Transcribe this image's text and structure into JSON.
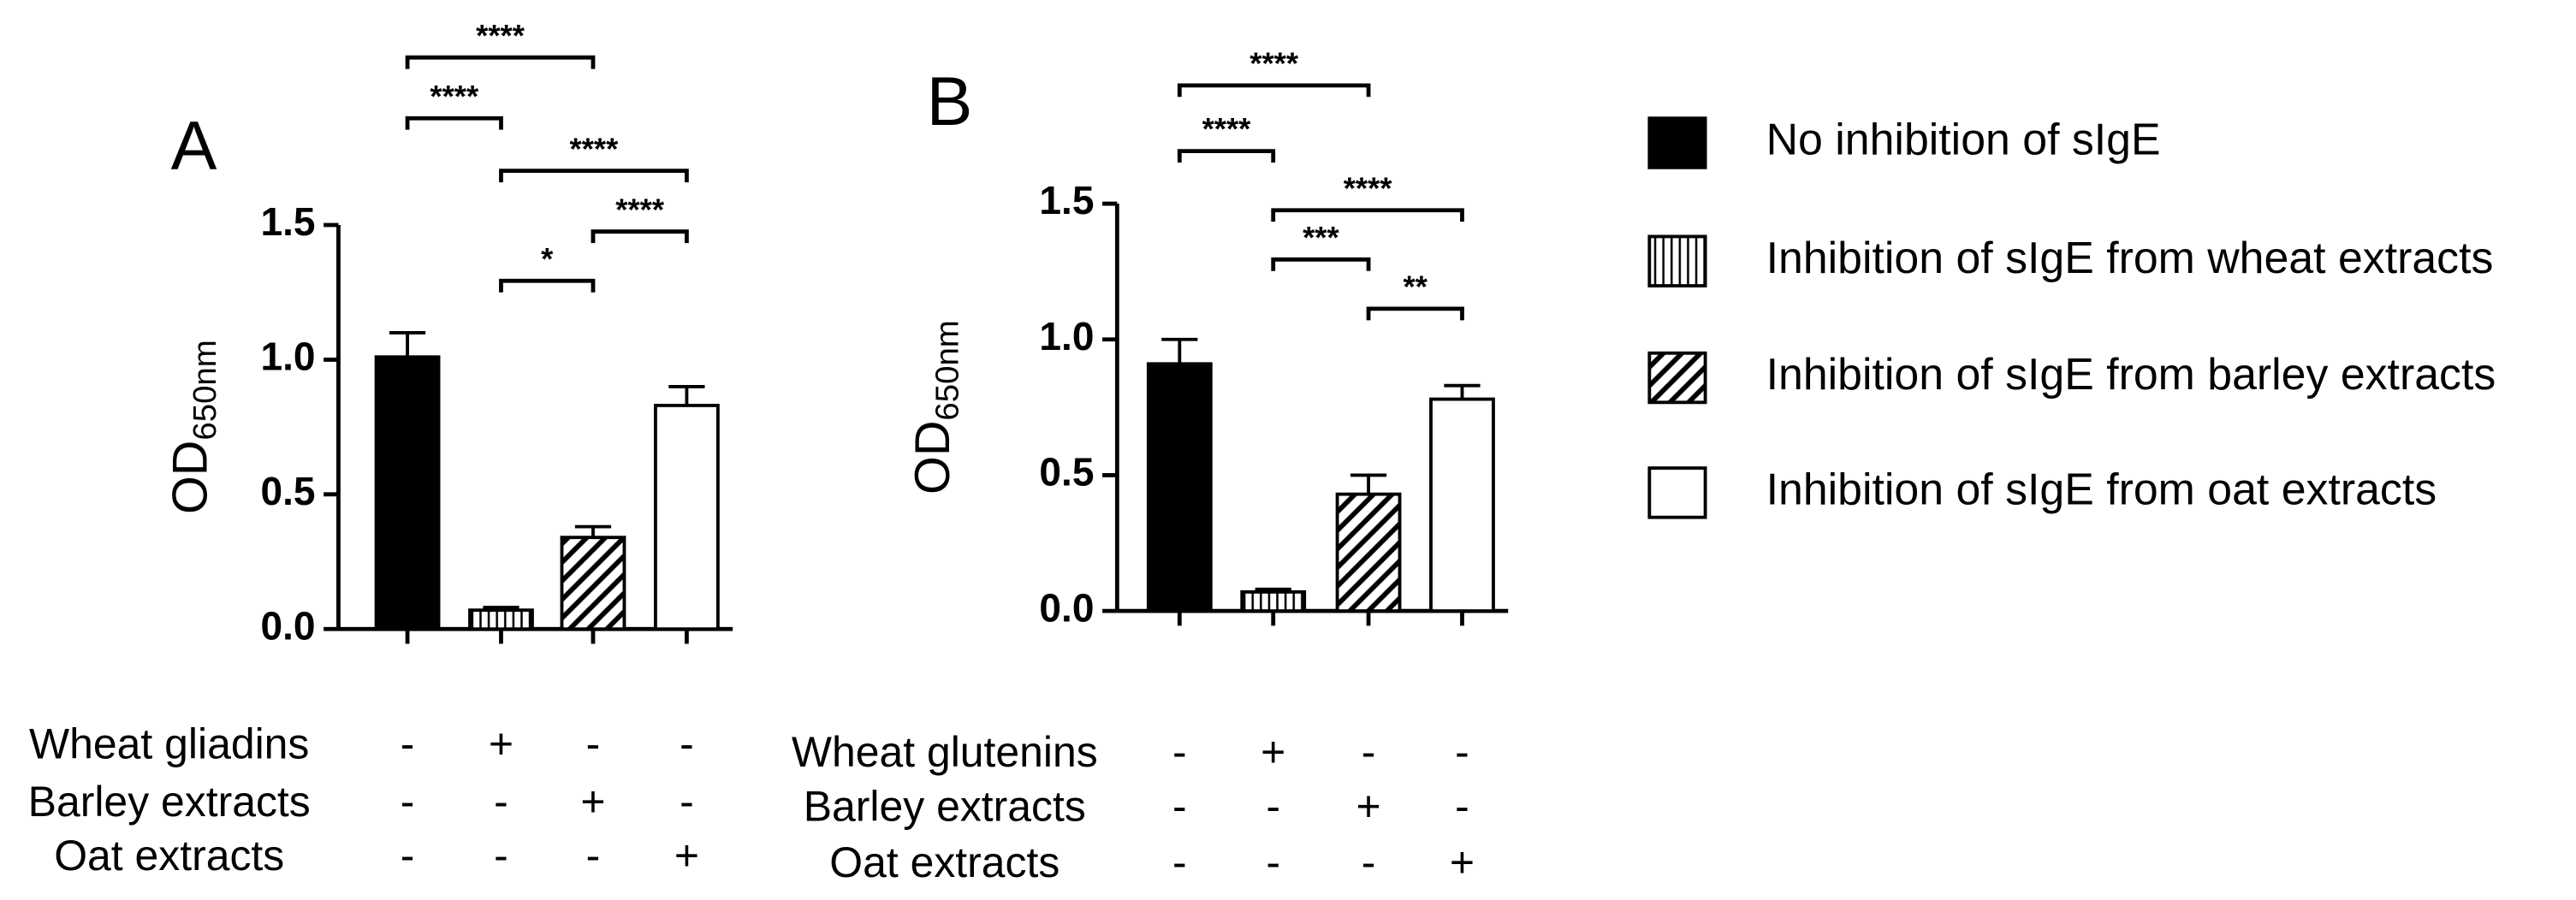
{
  "chart_data": [
    {
      "type": "bar",
      "panel": "A",
      "ylabel": "OD",
      "ylabel_sub": "650nm",
      "categories": [
        null,
        null,
        null,
        null
      ],
      "values": [
        1.01,
        0.07,
        0.34,
        0.83
      ],
      "errors": [
        0.09,
        0.01,
        0.04,
        0.07
      ],
      "patterns": [
        "solid",
        "vertical",
        "diagonal",
        "empty"
      ],
      "ylim": [
        0,
        1.5
      ],
      "yticks": [
        {
          "value": 0,
          "label": "0.0"
        },
        {
          "value": 0.5,
          "label": "0.5"
        },
        {
          "value": 1,
          "label": "1.0"
        },
        {
          "value": 1.5,
          "label": "1.5"
        }
      ],
      "significance": [
        {
          "between": [
            0,
            2
          ],
          "label": "****"
        },
        {
          "between": [
            0,
            1
          ],
          "label": "****"
        },
        {
          "between": [
            1,
            3
          ],
          "label": "****"
        },
        {
          "between": [
            2,
            3
          ],
          "label": "****"
        },
        {
          "between": [
            1,
            2
          ],
          "label": "*"
        }
      ],
      "conditions": [
        {
          "label": "Wheat gliadins",
          "signs": [
            "-",
            "+",
            "-",
            "-"
          ]
        },
        {
          "label": "Barley extracts",
          "signs": [
            "-",
            "-",
            "+",
            "-"
          ]
        },
        {
          "label": "Oat extracts",
          "signs": [
            "-",
            "-",
            "-",
            "+"
          ]
        }
      ]
    },
    {
      "type": "bar",
      "panel": "B",
      "ylabel": "OD",
      "ylabel_sub": "650nm",
      "categories": [
        null,
        null,
        null,
        null
      ],
      "values": [
        0.91,
        0.07,
        0.43,
        0.78
      ],
      "errors": [
        0.09,
        0.01,
        0.07,
        0.05
      ],
      "patterns": [
        "solid",
        "vertical",
        "diagonal",
        "empty"
      ],
      "ylim": [
        0,
        1.5
      ],
      "yticks": [
        {
          "value": 0,
          "label": "0.0"
        },
        {
          "value": 0.5,
          "label": "0.5"
        },
        {
          "value": 1,
          "label": "1.0"
        },
        {
          "value": 1.5,
          "label": "1.5"
        }
      ],
      "significance": [
        {
          "between": [
            0,
            2
          ],
          "label": "****"
        },
        {
          "between": [
            0,
            1
          ],
          "label": "****"
        },
        {
          "between": [
            1,
            3
          ],
          "label": "****"
        },
        {
          "between": [
            1,
            2
          ],
          "label": "***"
        },
        {
          "between": [
            2,
            3
          ],
          "label": "**"
        }
      ],
      "conditions": [
        {
          "label": "Wheat glutenins",
          "signs": [
            "-",
            "+",
            "-",
            "-"
          ]
        },
        {
          "label": "Barley extracts",
          "signs": [
            "-",
            "-",
            "+",
            "-"
          ]
        },
        {
          "label": "Oat extracts",
          "signs": [
            "-",
            "-",
            "-",
            "+"
          ]
        }
      ]
    }
  ],
  "legend": [
    {
      "name": "No inhibition of sIgE",
      "pattern": "solid"
    },
    {
      "name": "Inhibition of sIgE from wheat extracts",
      "pattern": "vertical"
    },
    {
      "name": "Inhibition of sIgE from barley extracts",
      "pattern": "diagonal"
    },
    {
      "name": "Inhibition of sIgE from oat extracts",
      "pattern": "empty"
    }
  ]
}
